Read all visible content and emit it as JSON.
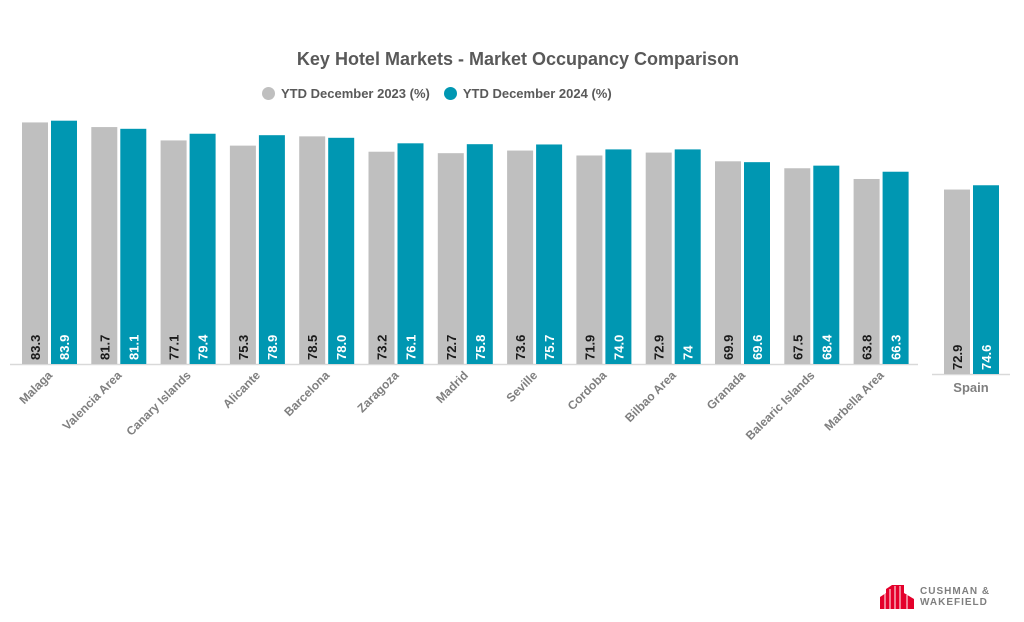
{
  "chart_data": {
    "type": "bar",
    "title": "Key Hotel Markets - Market Occupancy Comparison",
    "legend_position": "top",
    "grid": false,
    "categories": [
      "Malaga",
      "Valencia Area",
      "Canary Islands",
      "Alicante",
      "Barcelona",
      "Zaragoza",
      "Madrid",
      "Seville",
      "Cordoba",
      "Bilbao Area",
      "Granada",
      "Balearic Islands",
      "Marbella Area"
    ],
    "series": [
      {
        "name": "YTD December 2023 (%)",
        "color": "#bfbfbf",
        "values": [
          83.3,
          81.7,
          77.1,
          75.3,
          78.5,
          73.2,
          72.7,
          73.6,
          71.9,
          72.9,
          69.9,
          67.5,
          63.8
        ],
        "labels": [
          "83.3",
          "81.7",
          "77.1",
          "75.3",
          "78.5",
          "73.2",
          "72.7",
          "73.6",
          "71.9",
          "72.9",
          "69.9",
          "67.5",
          "63.8"
        ]
      },
      {
        "name": "YTD December 2024 (%)",
        "color": "#0097b2",
        "values": [
          83.9,
          81.1,
          79.4,
          78.9,
          78.0,
          76.1,
          75.8,
          75.7,
          74.0,
          74,
          69.6,
          68.4,
          66.3
        ],
        "labels": [
          "83.9",
          "81.1",
          "79.4",
          "78.9",
          "78.0",
          "76.1",
          "75.8",
          "75.7",
          "74.0",
          "74",
          "69.6",
          "68.4",
          "66.3"
        ]
      }
    ],
    "ylim": [
      0,
      85
    ],
    "secondary": {
      "categories": [
        "Spain"
      ],
      "series": [
        {
          "name": "YTD December 2023 (%)",
          "values": [
            72.9
          ],
          "labels": [
            "72.9"
          ]
        },
        {
          "name": "YTD December 2024 (%)",
          "values": [
            74.6
          ],
          "labels": [
            "74.6"
          ]
        }
      ]
    }
  },
  "logo": {
    "text_line1": "CUSHMAN &",
    "text_line2": "WAKEFIELD",
    "color": "#e4002b"
  }
}
